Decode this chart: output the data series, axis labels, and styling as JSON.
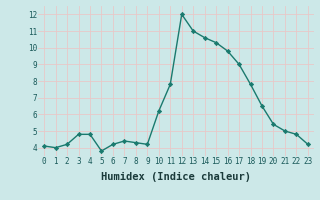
{
  "x": [
    0,
    1,
    2,
    3,
    4,
    5,
    6,
    7,
    8,
    9,
    10,
    11,
    12,
    13,
    14,
    15,
    16,
    17,
    18,
    19,
    20,
    21,
    22,
    23
  ],
  "y": [
    4.1,
    4.0,
    4.2,
    4.8,
    4.8,
    3.8,
    4.2,
    4.4,
    4.3,
    4.2,
    6.2,
    7.8,
    12.0,
    11.0,
    10.6,
    10.3,
    9.8,
    9.0,
    7.8,
    6.5,
    5.4,
    5.0,
    4.8,
    4.2
  ],
  "line_color": "#1a7a6e",
  "marker": "D",
  "marker_size": 2.2,
  "line_width": 1.0,
  "bg_color": "#cce8e8",
  "grid_color": "#e8c8c8",
  "xlabel": "Humidex (Indice chaleur)",
  "ylim": [
    3.5,
    12.5
  ],
  "xlim": [
    -0.5,
    23.5
  ],
  "yticks": [
    4,
    5,
    6,
    7,
    8,
    9,
    10,
    11,
    12
  ],
  "xticks": [
    0,
    1,
    2,
    3,
    4,
    5,
    6,
    7,
    8,
    9,
    10,
    11,
    12,
    13,
    14,
    15,
    16,
    17,
    18,
    19,
    20,
    21,
    22,
    23
  ],
  "tick_fontsize": 5.5,
  "xlabel_fontsize": 7.5,
  "tick_color": "#1a5a5a",
  "label_color": "#1a3a3a"
}
